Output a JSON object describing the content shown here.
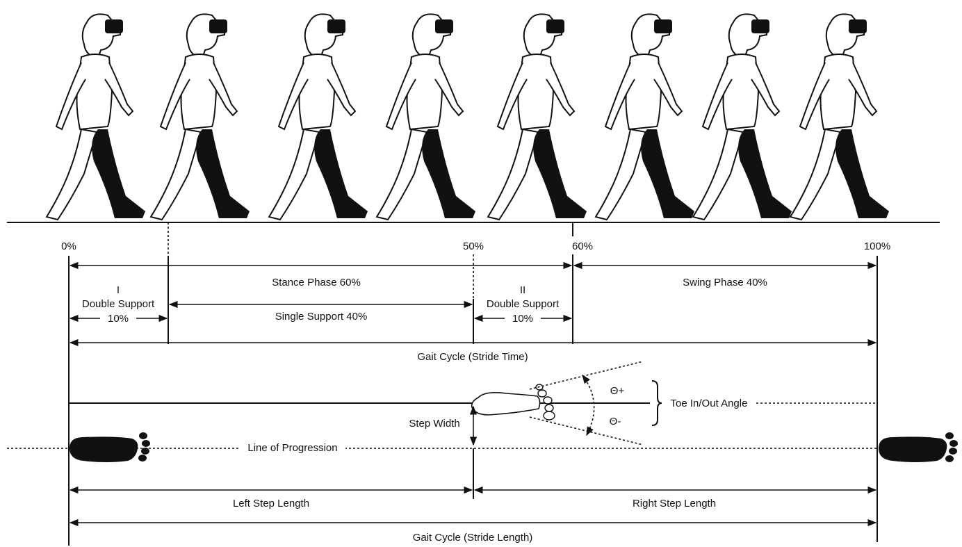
{
  "timeline": {
    "markers": [
      "0%",
      "50%",
      "60%",
      "100%"
    ],
    "stance": "Stance Phase 60%",
    "swing": "Swing Phase 40%",
    "double_support_1": {
      "numeral": "I",
      "label": "Double Support",
      "percent": "10%"
    },
    "single_support": "Single Support 40%",
    "double_support_2": {
      "numeral": "II",
      "label": "Double Support",
      "percent": "10%"
    },
    "stride_time": "Gait Cycle (Stride Time)"
  },
  "footprint": {
    "theta_plus": "Θ+",
    "theta_minus": "Θ-",
    "toe_angle": "Toe In/Out Angle",
    "step_width": "Step Width",
    "line_of_progression": "Line of Progression",
    "left_step": "Left Step Length",
    "right_step": "Right Step Length",
    "stride_length": "Gait Cycle (Stride Length)"
  }
}
